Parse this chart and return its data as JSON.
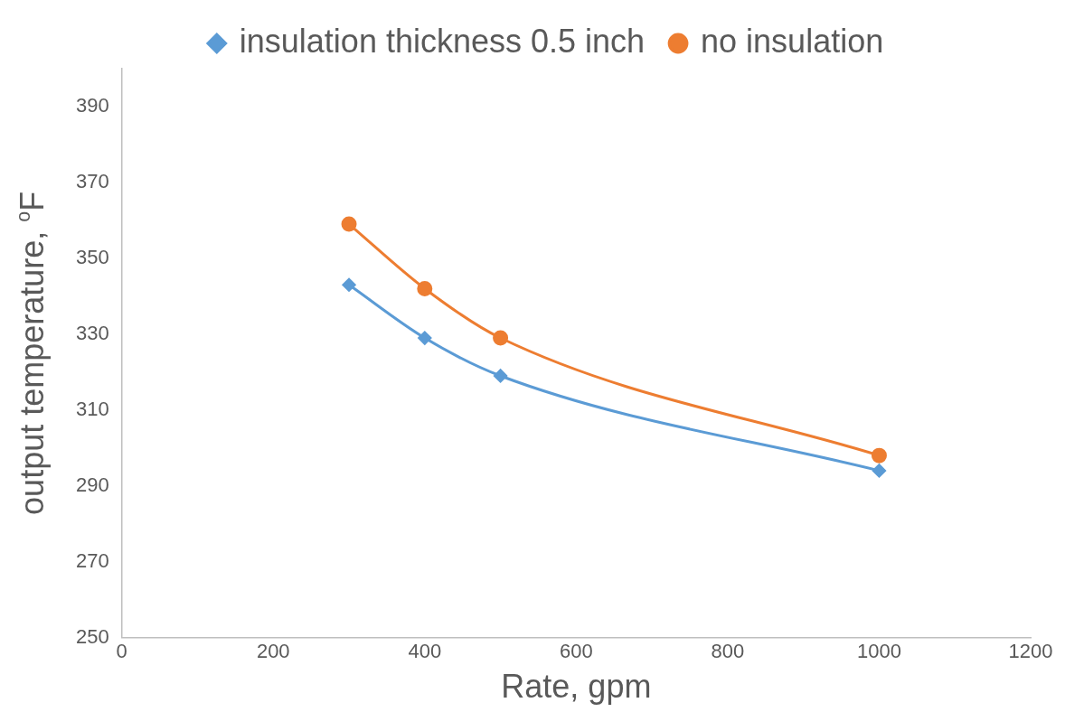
{
  "chart_data": {
    "type": "line",
    "xlabel": "Rate, gpm",
    "ylabel": "output temperature, $^{o}$F",
    "x": [
      300,
      400,
      500,
      1000
    ],
    "series": [
      {
        "name": "insulation thickness 0.5 inch",
        "color": "#5b9bd5",
        "marker": "diamond",
        "values": [
          343,
          329,
          319,
          294
        ]
      },
      {
        "name": "no insulation",
        "color": "#ed7d31",
        "marker": "circle",
        "values": [
          359,
          342,
          329,
          298
        ]
      }
    ],
    "xlim": [
      0,
      1200
    ],
    "xticks": [
      0,
      200,
      400,
      600,
      800,
      1000,
      1200
    ],
    "ylim": [
      250,
      400
    ],
    "yticks": [
      250,
      270,
      290,
      310,
      330,
      350,
      370,
      390
    ],
    "grid": false,
    "legend": "top"
  }
}
